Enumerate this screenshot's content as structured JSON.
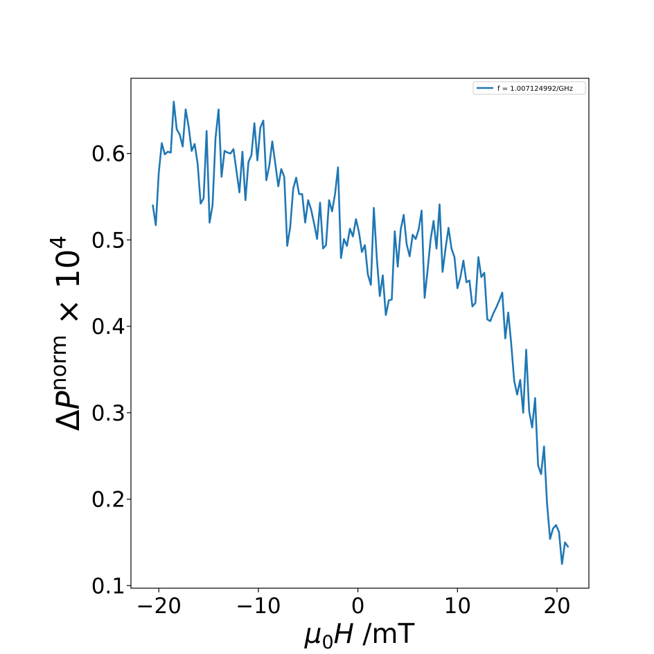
{
  "chart_data": {
    "type": "line",
    "title": "",
    "xlabel": {
      "prefix": "μ",
      "subscript": "0",
      "italic": "H",
      "suffix": " /mT"
    },
    "ylabel": {
      "prefix": "Δ",
      "italic": "P",
      "superscript": "norm",
      "middle": " × 10",
      "exponent": "4"
    },
    "xlim": [
      -22.8,
      23.2
    ],
    "ylim": [
      0.097,
      0.687
    ],
    "xticks": [
      -20,
      -10,
      0,
      10,
      20
    ],
    "xtick_labels": [
      "−20",
      "−10",
      "0",
      "10",
      "20"
    ],
    "yticks": [
      0.1,
      0.2,
      0.3,
      0.4,
      0.5,
      0.6
    ],
    "ytick_labels": [
      "0.1",
      "0.2",
      "0.3",
      "0.4",
      "0.5",
      "0.6"
    ],
    "grid": false,
    "legend_position": "top-right",
    "series": [
      {
        "name": "f = 1.007124992/GHz",
        "color": "#1f77b4",
        "x": [
          -20.6,
          -20.3,
          -20.0,
          -19.7,
          -19.4,
          -19.1,
          -18.8,
          -18.5,
          -18.2,
          -17.9,
          -17.6,
          -17.3,
          -17.0,
          -16.7,
          -16.4,
          -16.1,
          -15.8,
          -15.5,
          -15.2,
          -14.9,
          -14.6,
          -14.3,
          -14.0,
          -13.7,
          -13.4,
          -13.1,
          -12.8,
          -12.5,
          -12.2,
          -11.9,
          -11.6,
          -11.3,
          -11.0,
          -10.7,
          -10.4,
          -10.1,
          -9.8,
          -9.5,
          -9.2,
          -8.9,
          -8.6,
          -8.3,
          -8.0,
          -7.7,
          -7.4,
          -7.1,
          -6.8,
          -6.5,
          -6.2,
          -5.9,
          -5.6,
          -5.3,
          -5.0,
          -4.7,
          -4.4,
          -4.1,
          -3.8,
          -3.5,
          -3.2,
          -2.9,
          -2.6,
          -2.3,
          -2.0,
          -1.7,
          -1.4,
          -1.1,
          -0.8,
          -0.5,
          -0.2,
          0.1,
          0.4,
          0.7,
          1.0,
          1.3,
          1.6,
          1.9,
          2.2,
          2.5,
          2.8,
          3.1,
          3.4,
          3.7,
          4.0,
          4.3,
          4.6,
          4.9,
          5.2,
          5.5,
          5.8,
          6.1,
          6.4,
          6.7,
          7.0,
          7.3,
          7.6,
          7.9,
          8.2,
          8.5,
          8.8,
          9.1,
          9.4,
          9.7,
          10.0,
          10.3,
          10.6,
          10.9,
          11.2,
          11.5,
          11.8,
          12.1,
          12.4,
          12.7,
          13.0,
          13.3,
          13.6,
          13.9,
          14.2,
          14.5,
          14.8,
          15.1,
          15.4,
          15.7,
          16.0,
          16.3,
          16.6,
          16.9,
          17.2,
          17.5,
          17.8,
          18.1,
          18.4,
          18.7,
          19.0,
          19.3,
          19.6,
          19.9,
          20.2,
          20.5,
          20.8,
          21.1
        ],
        "y": [
          0.54,
          0.517,
          0.578,
          0.612,
          0.599,
          0.602,
          0.601,
          0.66,
          0.628,
          0.622,
          0.608,
          0.651,
          0.631,
          0.603,
          0.611,
          0.588,
          0.542,
          0.548,
          0.626,
          0.52,
          0.54,
          0.618,
          0.651,
          0.573,
          0.603,
          0.601,
          0.6,
          0.605,
          0.58,
          0.555,
          0.602,
          0.546,
          0.59,
          0.598,
          0.635,
          0.592,
          0.63,
          0.638,
          0.569,
          0.586,
          0.614,
          0.588,
          0.562,
          0.582,
          0.573,
          0.493,
          0.515,
          0.559,
          0.572,
          0.553,
          0.553,
          0.52,
          0.546,
          0.535,
          0.519,
          0.501,
          0.543,
          0.49,
          0.494,
          0.546,
          0.533,
          0.553,
          0.584,
          0.479,
          0.501,
          0.493,
          0.513,
          0.504,
          0.524,
          0.509,
          0.486,
          0.494,
          0.46,
          0.448,
          0.537,
          0.479,
          0.435,
          0.459,
          0.413,
          0.43,
          0.431,
          0.51,
          0.469,
          0.512,
          0.529,
          0.495,
          0.481,
          0.506,
          0.501,
          0.512,
          0.534,
          0.433,
          0.465,
          0.5,
          0.522,
          0.49,
          0.541,
          0.463,
          0.49,
          0.514,
          0.49,
          0.48,
          0.444,
          0.457,
          0.476,
          0.451,
          0.453,
          0.423,
          0.427,
          0.48,
          0.457,
          0.462,
          0.408,
          0.406,
          0.415,
          0.422,
          0.43,
          0.439,
          0.386,
          0.416,
          0.38,
          0.337,
          0.321,
          0.338,
          0.3,
          0.373,
          0.302,
          0.283,
          0.317,
          0.239,
          0.229,
          0.261,
          0.195,
          0.154,
          0.166,
          0.17,
          0.162,
          0.125,
          0.15,
          0.145
        ]
      }
    ]
  }
}
